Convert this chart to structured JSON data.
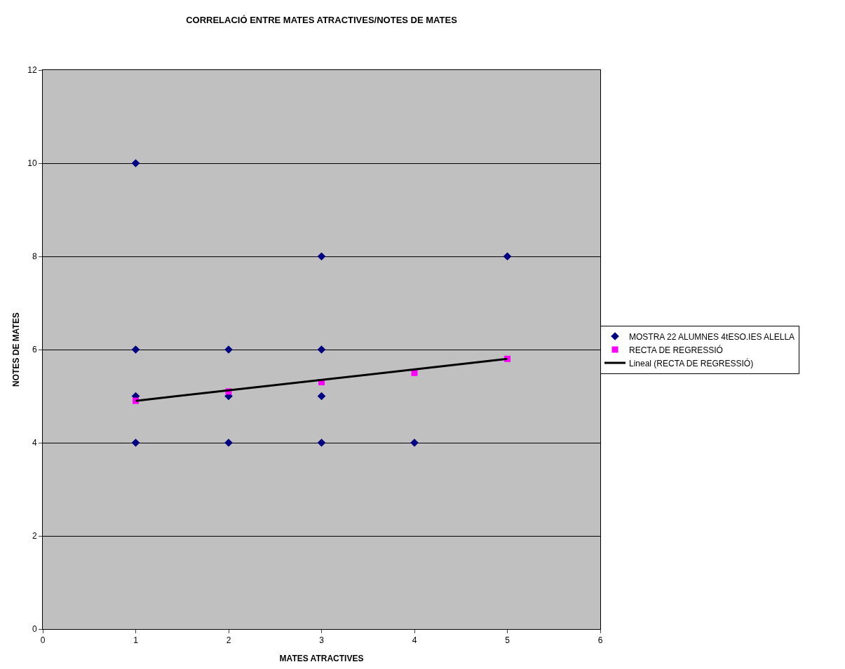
{
  "chart_data": {
    "type": "scatter",
    "title": "CORRELACIÓ ENTRE MATES ATRACTIVES/NOTES DE MATES",
    "xlabel": "MATES ATRACTIVES",
    "ylabel": "NOTES DE MATES",
    "xlim": [
      0,
      6
    ],
    "xticks": [
      0,
      1,
      2,
      3,
      4,
      5,
      6
    ],
    "ylim": [
      0,
      12
    ],
    "yticks": [
      0,
      2,
      4,
      6,
      8,
      10,
      12
    ],
    "grid": "y",
    "legend": "right",
    "series": [
      {
        "name": "MOSTRA 22 ALUMNES 4tESO.IES ALELLA",
        "color": "#000080",
        "marker": "diamond",
        "x": [
          1,
          1,
          1,
          1,
          2,
          2,
          2,
          3,
          3,
          3,
          3,
          4,
          5
        ],
        "values": [
          10,
          6,
          5,
          4,
          6,
          5,
          4,
          8,
          6,
          5,
          4,
          4,
          8
        ]
      },
      {
        "name": "RECTA DE REGRESSIÓ",
        "color": "#ff00ff",
        "marker": "square",
        "x": [
          1,
          2,
          3,
          4,
          5
        ],
        "values": [
          4.9,
          5.1,
          5.3,
          5.5,
          5.8
        ]
      },
      {
        "name": "Lineal (RECTA DE REGRESSIÓ)",
        "type": "line",
        "color": "#000000",
        "marker": "none",
        "line_style": "solid",
        "x": [
          1,
          5
        ],
        "values": [
          4.9,
          5.8
        ]
      }
    ]
  }
}
